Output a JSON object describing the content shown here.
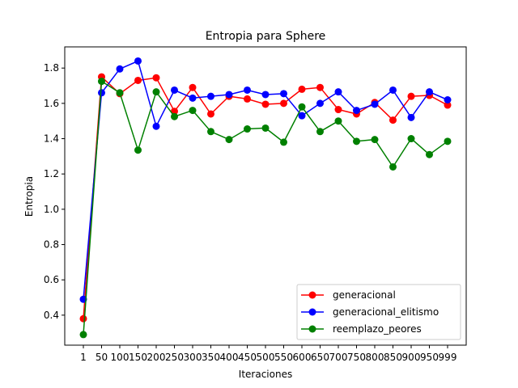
{
  "chart_data": {
    "type": "line",
    "title": "Entropia para Sphere",
    "xlabel": "Iteraciones",
    "ylabel": "Entropia",
    "categories": [
      "1",
      "50",
      "100",
      "150",
      "200",
      "250",
      "300",
      "350",
      "400",
      "450",
      "500",
      "550",
      "600",
      "650",
      "700",
      "750",
      "800",
      "850",
      "900",
      "950",
      "999"
    ],
    "yticks": [
      0.4,
      0.6,
      0.8,
      1.0,
      1.2,
      1.4,
      1.6,
      1.8
    ],
    "ylim": [
      0.23,
      1.92
    ],
    "grid": false,
    "legend_position": "lower-right",
    "series": [
      {
        "name": "generacional",
        "color": "#ff0000",
        "values": [
          0.38,
          1.75,
          1.655,
          1.73,
          1.745,
          1.555,
          1.69,
          1.54,
          1.64,
          1.625,
          1.595,
          1.6,
          1.68,
          1.69,
          1.565,
          1.54,
          1.605,
          1.505,
          1.64,
          1.645,
          1.59
        ]
      },
      {
        "name": "generacional_elitismo",
        "color": "#0000ff",
        "values": [
          0.49,
          1.66,
          1.795,
          1.84,
          1.47,
          1.675,
          1.63,
          1.64,
          1.65,
          1.675,
          1.65,
          1.655,
          1.53,
          1.6,
          1.665,
          1.56,
          1.595,
          1.675,
          1.52,
          1.665,
          1.62
        ]
      },
      {
        "name": "reemplazo_peores",
        "color": "#008000",
        "values": [
          0.29,
          1.725,
          1.66,
          1.335,
          1.665,
          1.525,
          1.56,
          1.44,
          1.395,
          1.455,
          1.46,
          1.38,
          1.58,
          1.44,
          1.5,
          1.385,
          1.395,
          1.24,
          1.4,
          1.31,
          1.385
        ]
      }
    ]
  }
}
